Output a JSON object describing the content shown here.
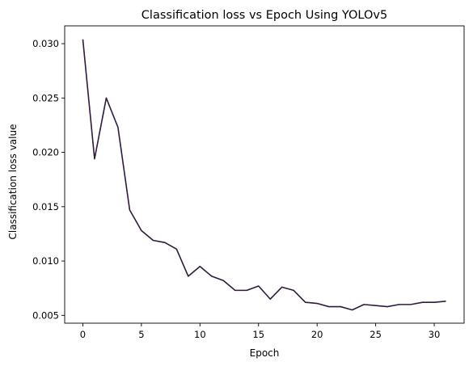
{
  "chart_data": {
    "type": "line",
    "title": "Classification loss vs Epoch Using YOLOv5",
    "xlabel": "Epoch",
    "ylabel": "Classification loss value",
    "xlim": [
      -1.55,
      32.55
    ],
    "ylim": [
      0.00428,
      0.03164
    ],
    "x_ticks": [
      0,
      5,
      10,
      15,
      20,
      25,
      30
    ],
    "x_tick_labels": [
      "0",
      "5",
      "10",
      "15",
      "20",
      "25",
      "30"
    ],
    "y_ticks": [
      0.005,
      0.01,
      0.015,
      0.02,
      0.025,
      0.03
    ],
    "y_tick_labels": [
      "0.005",
      "0.010",
      "0.015",
      "0.020",
      "0.025",
      "0.030"
    ],
    "grid": false,
    "series": [
      {
        "name": "Classification loss",
        "color": "#2e1a3e",
        "x": [
          0,
          1,
          2,
          3,
          4,
          5,
          6,
          7,
          8,
          9,
          10,
          11,
          12,
          13,
          14,
          15,
          16,
          17,
          18,
          19,
          20,
          21,
          22,
          23,
          24,
          25,
          26,
          27,
          28,
          29,
          30,
          31
        ],
        "values": [
          0.0304,
          0.0194,
          0.025,
          0.0223,
          0.0147,
          0.0128,
          0.0119,
          0.0117,
          0.0111,
          0.0086,
          0.0095,
          0.0086,
          0.0082,
          0.0073,
          0.0073,
          0.0077,
          0.0065,
          0.0076,
          0.0073,
          0.0062,
          0.0061,
          0.0058,
          0.0058,
          0.0055,
          0.006,
          0.0059,
          0.0058,
          0.006,
          0.006,
          0.0062,
          0.0062,
          0.0063
        ]
      }
    ]
  }
}
